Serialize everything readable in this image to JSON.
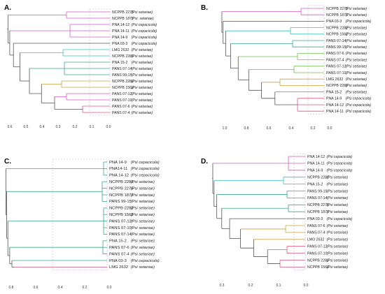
{
  "figure": {
    "panels": [
      {
        "label": "A.",
        "ticks": [
          "0.6",
          "0.5",
          "0.4",
          "0.3",
          "0.2",
          "0.1",
          "0.0"
        ],
        "leaves": [
          {
            "strain": "NCPPB 2275",
            "species": "(Psi setariae)"
          },
          {
            "strain": "NCPPB 1877",
            "species": "(Psi. setariae)"
          },
          {
            "strain": "PNA 14-12",
            "species": "(Psi cepacicola)"
          },
          {
            "strain": "PNA 14-11",
            "species": "(Psi cepacicola)"
          },
          {
            "strain": "PNA 14-9",
            "species": "(Psi cepacicola)"
          },
          {
            "strain": "PNA 03-3",
            "species": "(Psi cepacicola)"
          },
          {
            "strain": "LMG 2632",
            "species": "(Psi setariae)"
          },
          {
            "strain": "NCPPB 2281",
            "species": "(Psi setariae)"
          },
          {
            "strain": "PNA 15-2",
            "species": "(Psi setariae)"
          },
          {
            "strain": "PANS 07-14",
            "species": "(Psi setariae)"
          },
          {
            "strain": "PANS 99-15",
            "species": "(Psi setariae)"
          },
          {
            "strain": "NCPPB 2282",
            "species": "(Psi setariae)"
          },
          {
            "strain": "NCPPB 1562",
            "species": "(Psi setariae)"
          },
          {
            "strain": "PANS 07-12",
            "species": "(Psi setariae)"
          },
          {
            "strain": "PANS 07-10",
            "species": "(Psi setariae)"
          },
          {
            "strain": "PANS 07-6",
            "species": "(Psi setariae)"
          },
          {
            "strain": "PANS 07-4",
            "species": "(Psi setariae)"
          }
        ]
      },
      {
        "label": "B.",
        "ticks": [
          "1.0",
          "0.8",
          "0.6",
          "0.4",
          "0.2",
          "0.0"
        ],
        "leaves": [
          {
            "strain": "NCPPB 2275",
            "species": "(Psi setariae)"
          },
          {
            "strain": "NCPPB 1877",
            "species": "(Psi setariae)"
          },
          {
            "strain": "PNA 03-3",
            "species": "(Psi cepacicola)"
          },
          {
            "strain": "NCPPB 2282",
            "species": "(Psi setariae)"
          },
          {
            "strain": "NCPPB 1562",
            "species": "(Psi setariae)"
          },
          {
            "strain": "PANS 07-14",
            "species": "(Psi setariae)"
          },
          {
            "strain": "PANS 99-15",
            "species": "(Psi setariae)"
          },
          {
            "strain": "PANS 07-6",
            "species": "(Psi setariae)"
          },
          {
            "strain": "PANS 07-4",
            "species": "(Psi setariae)"
          },
          {
            "strain": "PANS 07-12",
            "species": "(Psi setariae)"
          },
          {
            "strain": "PANS 07-10",
            "species": "(Psi setariae)"
          },
          {
            "strain": "LMG 2632",
            "species": "(Psi setariae)"
          },
          {
            "strain": "NCPPB 2281",
            "species": "(Psi setariae)"
          },
          {
            "strain": "PNA 15-2",
            "species": "(Psi setariae)"
          },
          {
            "strain": "PNA 14-9",
            "species": "(Psi cepacicola)"
          },
          {
            "strain": "PNA 14-12",
            "species": "(Psi cepacicola)"
          },
          {
            "strain": "PNA 14-11",
            "species": "(Psi cepacicola)"
          }
        ]
      },
      {
        "label": "C.",
        "ticks": [
          "0.8",
          "0.6",
          "0.4",
          "0.2",
          "0.0"
        ],
        "leaves": [
          {
            "strain": "PNA 14-9",
            "species": "(Psi cepacicola)"
          },
          {
            "strain": "PNA14-11",
            "species": "(Psi cepacicola)"
          },
          {
            "strain": "PNA 14-12",
            "species": "(Psi cepacicola)"
          },
          {
            "strain": "NCPPB 2281",
            "species": "(Psi setariae)"
          },
          {
            "strain": "NCPPB 2275",
            "species": "(Psi setariae)"
          },
          {
            "strain": "NCPPB 1877",
            "species": "(Psi setariae)"
          },
          {
            "strain": "PANS 99-15",
            "species": "(Psi setariae)"
          },
          {
            "strain": "NCPPB 2282",
            "species": "(Psi setariae)"
          },
          {
            "strain": "NCPPB 1562",
            "species": "(Psi setariae)"
          },
          {
            "strain": "PANS 07-12",
            "species": "(Psi setariae)"
          },
          {
            "strain": "PANS 07-10",
            "species": "(Psi setariae)"
          },
          {
            "strain": "PANS 07-14",
            "species": "(Psi setariae)"
          },
          {
            "strain": "PNA 15-2",
            "species": "(Psi setariae)"
          },
          {
            "strain": "PANS 07-6",
            "species": "(Psi setariae)"
          },
          {
            "strain": "PANS 07-4",
            "species": "(Psi setariae)"
          },
          {
            "strain": "PNA 03-3",
            "species": "(Psi cepacicola)"
          },
          {
            "strain": "LMG 2632",
            "species": "(Psi setariae)"
          }
        ]
      },
      {
        "label": "D.",
        "ticks": [
          "0.3",
          "0.2",
          "0.1",
          "0.0"
        ],
        "leaves": [
          {
            "strain": "PNA 14-12",
            "species": "(Psi cepacicola)"
          },
          {
            "strain": "PNA 14-11",
            "species": "(Psi cepacicola)"
          },
          {
            "strain": "PNA 14-9",
            "species": "(Psi cepacicola)"
          },
          {
            "strain": "NCPPB 2281",
            "species": "(Psi setariae)"
          },
          {
            "strain": "PNA 15-2",
            "species": "(Psi setariae)"
          },
          {
            "strain": "PANS 99-15",
            "species": "(Psi setariae)"
          },
          {
            "strain": "PANS 07-14",
            "species": "(Psi setariae)"
          },
          {
            "strain": "NCPPB 2275",
            "species": "(Psi setariae)"
          },
          {
            "strain": "NCPPB 1877",
            "species": "(Psi setariae)"
          },
          {
            "strain": "PNA 03-3",
            "species": "(Psi cepacicola)"
          },
          {
            "strain": "PANS 07-6",
            "species": "(Psi setariae)"
          },
          {
            "strain": "PANS 07-4",
            "species": "(Psi setariae)"
          },
          {
            "strain": "LMG 2632",
            "species": "(Psi setariae)"
          },
          {
            "strain": "PANS 07-12",
            "species": "(Psi setariae)"
          },
          {
            "strain": "PANS 07-10",
            "species": "(Psi setariae)"
          },
          {
            "strain": "NCPPB 2282",
            "species": "(Psi setariae)"
          },
          {
            "strain": "NCPPB 1562",
            "species": "(Psi setariae)"
          }
        ]
      }
    ]
  },
  "colors": {
    "branch_magenta": "#d957c9",
    "branch_cyan": "#3bbfbf",
    "branch_teal": "#3aa88a",
    "branch_green": "#6cc04a",
    "branch_olive": "#c9a13a",
    "branch_pink": "#e0557a",
    "branch_gray": "#555555",
    "guide_dashed": "#cfa6cf"
  }
}
